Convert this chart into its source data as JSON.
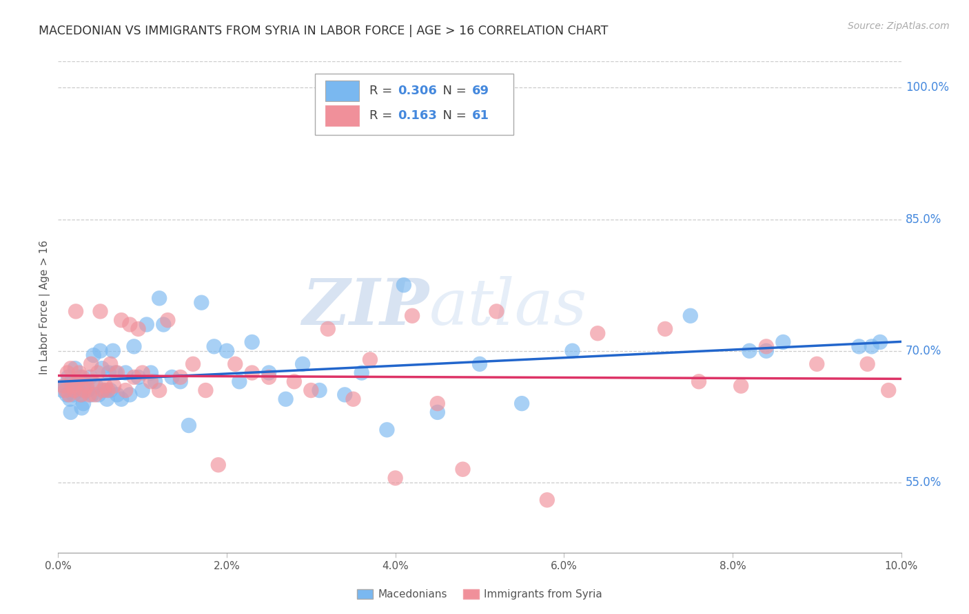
{
  "title": "MACEDONIAN VS IMMIGRANTS FROM SYRIA IN LABOR FORCE | AGE > 16 CORRELATION CHART",
  "source": "Source: ZipAtlas.com",
  "ylabel": "In Labor Force | Age > 16",
  "xlim": [
    0.0,
    10.0
  ],
  "ylim": [
    47.0,
    103.0
  ],
  "yticks": [
    55.0,
    70.0,
    85.0,
    100.0
  ],
  "xticks": [
    0.0,
    2.0,
    4.0,
    6.0,
    8.0,
    10.0
  ],
  "blue_color": "#7ab8f0",
  "pink_color": "#f0909a",
  "blue_line_color": "#2266cc",
  "pink_line_color": "#dd3366",
  "R_blue": 0.306,
  "N_blue": 69,
  "R_pink": 0.163,
  "N_pink": 61,
  "macedonians_x": [
    0.05,
    0.08,
    0.1,
    0.12,
    0.14,
    0.16,
    0.18,
    0.2,
    0.22,
    0.24,
    0.26,
    0.28,
    0.3,
    0.32,
    0.35,
    0.38,
    0.4,
    0.42,
    0.45,
    0.48,
    0.5,
    0.52,
    0.55,
    0.58,
    0.6,
    0.62,
    0.65,
    0.68,
    0.7,
    0.75,
    0.8,
    0.85,
    0.9,
    0.95,
    1.0,
    1.05,
    1.1,
    1.15,
    1.2,
    1.25,
    1.35,
    1.45,
    1.55,
    1.7,
    1.85,
    2.0,
    2.15,
    2.3,
    2.5,
    2.7,
    2.9,
    3.1,
    3.4,
    3.6,
    3.9,
    4.1,
    4.5,
    5.0,
    5.5,
    6.1,
    7.5,
    8.2,
    8.4,
    8.6,
    9.5,
    9.65,
    9.75,
    0.15,
    0.28
  ],
  "macedonians_y": [
    65.5,
    66.0,
    65.0,
    67.0,
    64.5,
    66.5,
    65.0,
    68.0,
    66.0,
    65.5,
    67.0,
    65.0,
    64.0,
    66.5,
    65.5,
    67.0,
    65.0,
    69.5,
    66.0,
    65.0,
    70.0,
    68.0,
    65.5,
    64.5,
    67.5,
    65.5,
    70.0,
    67.5,
    65.0,
    64.5,
    67.5,
    65.0,
    70.5,
    67.0,
    65.5,
    73.0,
    67.5,
    66.5,
    76.0,
    73.0,
    67.0,
    66.5,
    61.5,
    75.5,
    70.5,
    70.0,
    66.5,
    71.0,
    67.5,
    64.5,
    68.5,
    65.5,
    65.0,
    67.5,
    61.0,
    77.5,
    63.0,
    68.5,
    64.0,
    70.0,
    74.0,
    70.0,
    70.0,
    71.0,
    70.5,
    70.5,
    71.0,
    63.0,
    63.5
  ],
  "syria_x": [
    0.06,
    0.09,
    0.11,
    0.13,
    0.15,
    0.17,
    0.19,
    0.21,
    0.23,
    0.25,
    0.27,
    0.29,
    0.31,
    0.34,
    0.37,
    0.39,
    0.41,
    0.44,
    0.47,
    0.5,
    0.53,
    0.56,
    0.59,
    0.62,
    0.66,
    0.7,
    0.75,
    0.8,
    0.85,
    0.9,
    0.95,
    1.0,
    1.1,
    1.2,
    1.3,
    1.45,
    1.6,
    1.75,
    1.9,
    2.1,
    2.3,
    2.5,
    2.8,
    3.0,
    3.2,
    3.5,
    3.7,
    4.0,
    4.2,
    4.5,
    4.8,
    5.2,
    5.8,
    6.4,
    7.2,
    7.6,
    8.1,
    8.4,
    9.0,
    9.6,
    9.85
  ],
  "syria_y": [
    66.0,
    65.5,
    67.5,
    65.0,
    68.0,
    66.0,
    65.5,
    74.5,
    66.5,
    67.5,
    65.0,
    67.0,
    65.5,
    66.0,
    65.0,
    68.5,
    66.5,
    65.0,
    67.5,
    74.5,
    65.5,
    66.0,
    65.5,
    68.5,
    66.0,
    67.5,
    73.5,
    65.5,
    73.0,
    67.0,
    72.5,
    67.5,
    66.5,
    65.5,
    73.5,
    67.0,
    68.5,
    65.5,
    57.0,
    68.5,
    67.5,
    67.0,
    66.5,
    65.5,
    72.5,
    64.5,
    69.0,
    55.5,
    74.0,
    64.0,
    56.5,
    74.5,
    53.0,
    72.0,
    72.5,
    66.5,
    66.0,
    70.5,
    68.5,
    68.5,
    65.5
  ],
  "watermark_text": "ZIP",
  "watermark_text2": "atlas",
  "background_color": "#ffffff",
  "grid_color": "#cccccc",
  "legend_color": "#4488dd",
  "tick_color": "#4488dd"
}
